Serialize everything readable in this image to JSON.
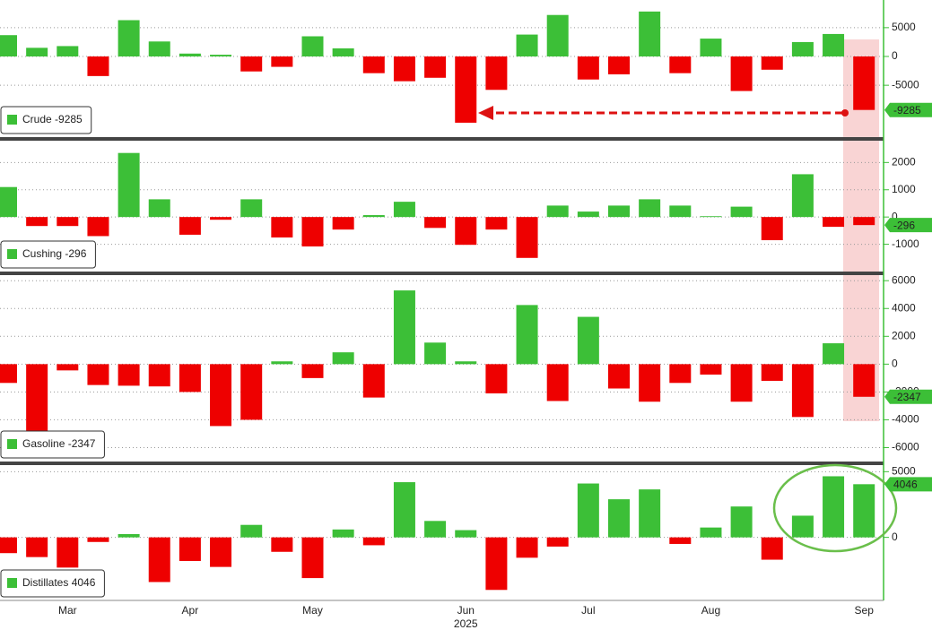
{
  "chart_data": [
    {
      "type": "bar",
      "series": [
        {
          "name": "Crude",
          "values": [
            3700,
            1500,
            1800,
            -3400,
            6300,
            2600,
            500,
            300,
            -2600,
            -1800,
            3500,
            1400,
            -2900,
            -4300,
            -3700,
            -11500,
            -5800,
            3800,
            7200,
            -4000,
            -3100,
            7800,
            -2900,
            3100,
            -6000,
            -2300,
            2500,
            3900,
            -9285
          ]
        }
      ],
      "positive_color": "#3cbf37",
      "negative_color": "#ee0000",
      "ylim": [
        -14000,
        9800
      ],
      "yticks": [
        5000,
        0,
        -5000
      ],
      "grid": true,
      "legend": "lower left"
    },
    {
      "type": "bar",
      "series": [
        {
          "name": "Cushing",
          "values": [
            1100,
            -330,
            -330,
            -700,
            2350,
            650,
            -650,
            -100,
            650,
            -750,
            -1080,
            -460,
            70,
            560,
            -400,
            -1020,
            -460,
            -1500,
            420,
            200,
            420,
            650,
            420,
            30,
            380,
            -850,
            1570,
            -360,
            -296
          ]
        }
      ],
      "positive_color": "#3cbf37",
      "negative_color": "#ee0000",
      "ylim": [
        -2000,
        2800
      ],
      "yticks": [
        2000,
        1000,
        0,
        -1000
      ],
      "grid": true,
      "legend": "lower left"
    },
    {
      "type": "bar",
      "series": [
        {
          "name": "Gasoline",
          "values": [
            -1350,
            -5000,
            -450,
            -1500,
            -1550,
            -1600,
            -2000,
            -4450,
            -4000,
            200,
            -1000,
            850,
            -2400,
            5300,
            1550,
            200,
            -2100,
            4250,
            -2650,
            3400,
            -1750,
            -2700,
            -1350,
            -750,
            -2700,
            -1200,
            -3800,
            1500,
            -2347
          ]
        }
      ],
      "positive_color": "#3cbf37",
      "negative_color": "#ee0000",
      "ylim": [
        -7000,
        6400
      ],
      "yticks": [
        6000,
        4000,
        2000,
        0,
        -2000,
        -4000,
        -6000
      ],
      "grid": true,
      "legend": "lower left"
    },
    {
      "type": "bar",
      "series": [
        {
          "name": "Distillates",
          "values": [
            -1200,
            -1500,
            -2300,
            -350,
            250,
            -3400,
            -1800,
            -2250,
            950,
            -1100,
            -3100,
            600,
            -600,
            4200,
            1250,
            550,
            -4000,
            -1550,
            -700,
            4100,
            2900,
            3650,
            -500,
            750,
            2350,
            -1700,
            1650,
            4650,
            4046
          ]
        }
      ],
      "positive_color": "#3cbf37",
      "negative_color": "#ee0000",
      "ylim": [
        -4800,
        5500
      ],
      "yticks": [
        5000,
        0
      ],
      "grid": true,
      "legend": "lower left",
      "categories": [
        null,
        null,
        "Mar",
        null,
        null,
        null,
        "Apr",
        null,
        null,
        null,
        "May",
        null,
        null,
        null,
        null,
        "Jun",
        null,
        null,
        null,
        "Jul",
        null,
        null,
        null,
        "Aug",
        null,
        null,
        null,
        null,
        "Sep"
      ],
      "year_label": "2025"
    }
  ]
}
